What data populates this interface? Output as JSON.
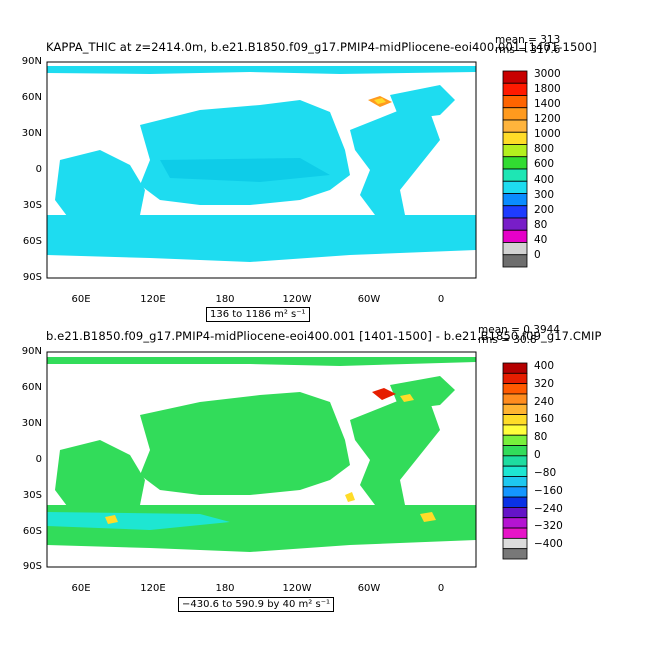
{
  "panels": [
    {
      "title": "KAPPA_THIC at z=2414.0m, b.e21.B1850.f09_g17.PMIP4-midPliocene-eoi400.001 [1401-1500]",
      "mean": "mean = 313",
      "rms": "rms = 317.6",
      "range": "136 to 1186 m² s⁻¹",
      "colorbar_labels": [
        "3000",
        "1800",
        "1400",
        "1200",
        "1000",
        "800",
        "600",
        "400",
        "300",
        "200",
        "80",
        "40",
        "0"
      ],
      "colorbar_colors": [
        "#c80000",
        "#ff1a00",
        "#ff6400",
        "#ff9a1e",
        "#ffb43c",
        "#ffdc28",
        "#b4f01e",
        "#32dc32",
        "#1ee6b4",
        "#1edcf0",
        "#0a8cff",
        "#1e3cff",
        "#781ec8",
        "#e600c8",
        "#d2d2d2",
        "#6e6e6e"
      ]
    },
    {
      "title": "b.e21.B1850.f09_g17.PMIP4-midPliocene-eoi400.001 [1401-1500] - b.e21.B1850.f09_g17.CMIP",
      "mean": "mean = 0.3944",
      "rms": "rms = 30.8",
      "range": "−430.6 to 590.9 by 40 m² s⁻¹",
      "colorbar_labels": [
        "400",
        "320",
        "240",
        "160",
        "80",
        "0",
        "−80",
        "−160",
        "−240",
        "−320",
        "−400"
      ],
      "colorbar_colors": [
        "#b40000",
        "#e61e00",
        "#ff5a00",
        "#ff8c1e",
        "#ffb432",
        "#ffdc28",
        "#ffff3c",
        "#78f03c",
        "#32dc5a",
        "#1edca0",
        "#1ee6d2",
        "#1ec8f0",
        "#1496ff",
        "#0a32e6",
        "#6414c8",
        "#b414d2",
        "#e614c8",
        "#dcdcdc",
        "#787878"
      ]
    }
  ],
  "lat_ticks": [
    "90N",
    "60N",
    "30N",
    "0",
    "30S",
    "60S",
    "90S"
  ],
  "lon_ticks": [
    "60E",
    "120E",
    "180",
    "120W",
    "60W",
    "0"
  ]
}
